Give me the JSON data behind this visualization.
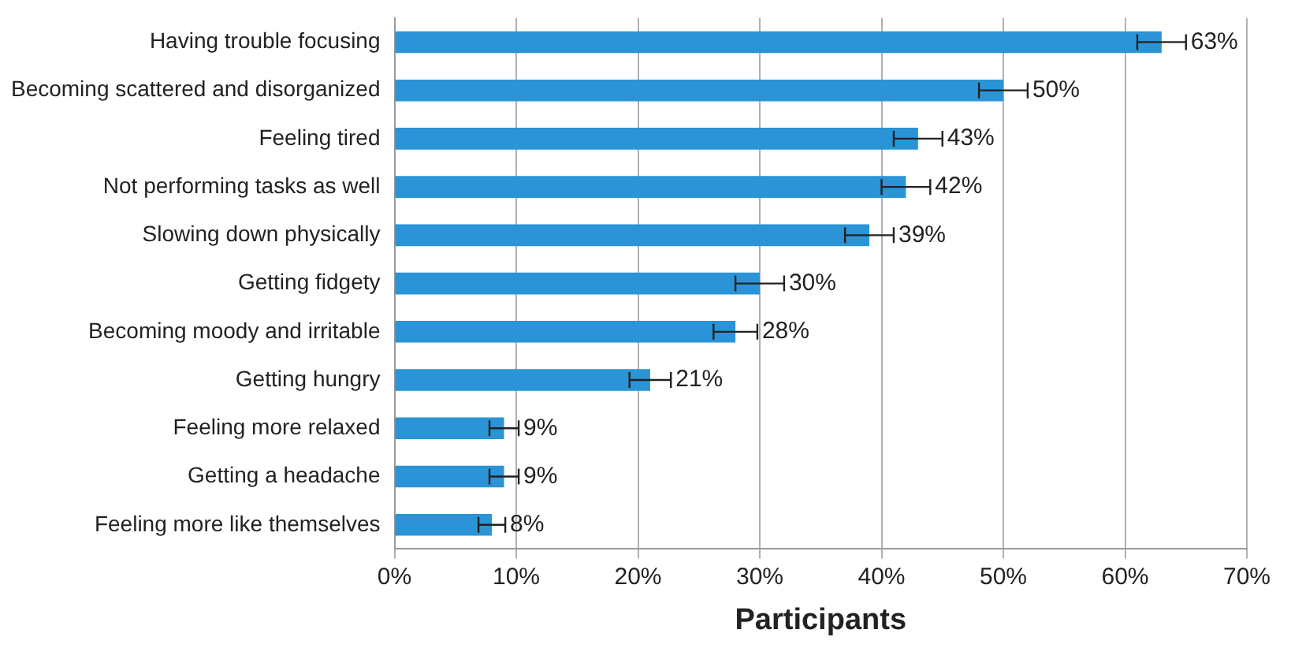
{
  "chart_data": {
    "type": "bar",
    "orientation": "horizontal",
    "xlabel": "Participants",
    "categories": [
      "Having trouble focusing",
      "Becoming scattered and disorganized",
      "Feeling tired",
      "Not performing tasks as well",
      "Slowing down physically",
      "Getting fidgety",
      "Becoming moody and irritable",
      "Getting hungry",
      "Feeling more relaxed",
      "Getting a headache",
      "Feeling more like themselves"
    ],
    "values": [
      63,
      50,
      43,
      42,
      39,
      30,
      28,
      21,
      9,
      9,
      8
    ],
    "errors": [
      2,
      2,
      2,
      2,
      2,
      2,
      1.8,
      1.7,
      1.2,
      1.2,
      1.1
    ],
    "value_labels": [
      "63%",
      "50%",
      "43%",
      "42%",
      "39%",
      "30%",
      "28%",
      "21%",
      "9%",
      "9%",
      "8%"
    ],
    "color": "#2a94d6",
    "xlim": [
      0,
      70
    ],
    "xticks": [
      {
        "value": 0,
        "label": "0%"
      },
      {
        "value": 10,
        "label": "10%"
      },
      {
        "value": 20,
        "label": "20%"
      },
      {
        "value": 30,
        "label": "30%"
      },
      {
        "value": 40,
        "label": "40%"
      },
      {
        "value": 50,
        "label": "50%"
      },
      {
        "value": 60,
        "label": "60%"
      },
      {
        "value": 70,
        "label": "70%"
      }
    ],
    "grid": "x",
    "legend": false
  }
}
